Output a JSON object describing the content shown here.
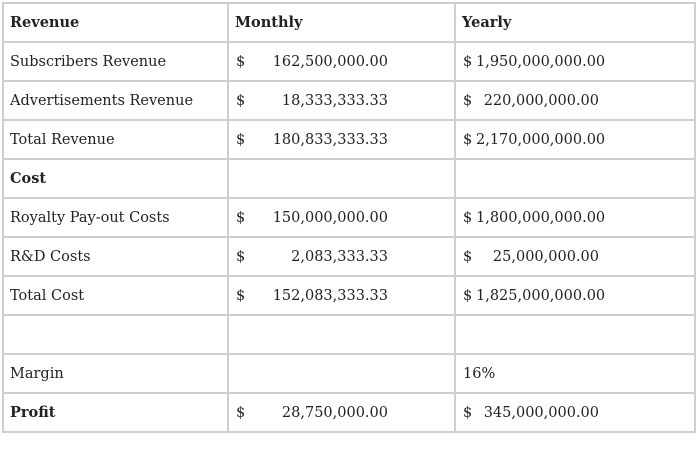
{
  "table": {
    "headers": [
      "Revenue",
      "Monthly",
      "Yearly"
    ],
    "rows": [
      {
        "label": "Subscribers Revenue",
        "monthly_cur": "$",
        "monthly": "162,500,000.00",
        "yearly_cur": "$",
        "yearly": "1,950,000,000.00"
      },
      {
        "label": "Advertisements Revenue",
        "monthly_cur": "$",
        "monthly": "18,333,333.33",
        "yearly_cur": "$",
        "yearly": "220,000,000.00"
      },
      {
        "label": "Total Revenue",
        "monthly_cur": "$",
        "monthly": "180,833,333.33",
        "yearly_cur": "$",
        "yearly": "2,170,000,000.00"
      },
      {
        "label": "Cost",
        "monthly_cur": "",
        "monthly": "",
        "yearly_cur": "",
        "yearly": ""
      },
      {
        "label": "Royalty Pay-out Costs",
        "monthly_cur": "$",
        "monthly": "150,000,000.00",
        "yearly_cur": "$",
        "yearly": "1,800,000,000.00"
      },
      {
        "label": "R&D Costs",
        "monthly_cur": "$",
        "monthly": "2,083,333.33",
        "yearly_cur": "$",
        "yearly": "25,000,000.00"
      },
      {
        "label": "Total Cost",
        "monthly_cur": "$",
        "monthly": "152,083,333.33",
        "yearly_cur": "$",
        "yearly": "1,825,000,000.00"
      },
      {
        "label": "",
        "monthly_cur": "",
        "monthly": "",
        "yearly_cur": "",
        "yearly": ""
      },
      {
        "label": "Margin",
        "monthly_cur": "",
        "monthly": "",
        "yearly_text": "16%"
      },
      {
        "label": "Profit",
        "monthly_cur": "$",
        "monthly": "28,750,000.00",
        "yearly_cur": "$",
        "yearly": "345,000,000.00"
      }
    ]
  }
}
